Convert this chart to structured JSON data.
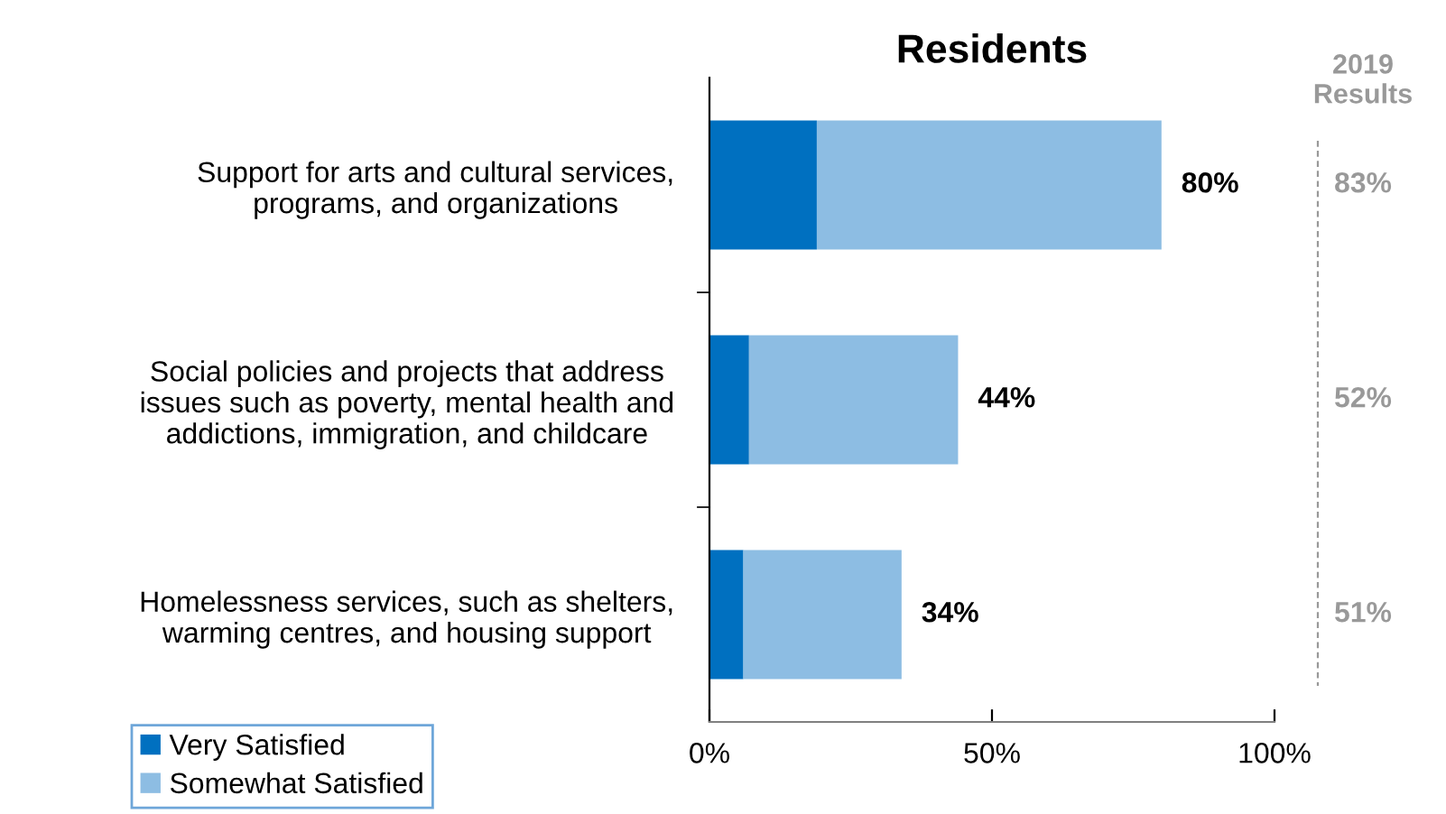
{
  "chart_data": {
    "type": "bar",
    "orientation": "horizontal",
    "stacked": true,
    "title": "Residents",
    "categories": [
      "Support for arts and cultural services,\nprograms, and organizations",
      "Social policies and projects that address\nissues such as poverty, mental health and\naddictions, immigration, and childcare",
      "Homelessness services, such as shelters,\nwarming centres, and housing support"
    ],
    "series": [
      {
        "name": "Very Satisfied",
        "color": "#0070c0",
        "values": [
          19,
          7,
          6
        ]
      },
      {
        "name": "Somewhat Satisfied",
        "color": "#8dbde3",
        "values": [
          61,
          37,
          28
        ]
      }
    ],
    "totals": [
      "80%",
      "44%",
      "34%"
    ],
    "xlim": [
      0,
      100
    ],
    "xticks": [
      {
        "value": 0,
        "label": "0%"
      },
      {
        "value": 50,
        "label": "50%"
      },
      {
        "value": 100,
        "label": "100%"
      }
    ],
    "legend": "bottom left",
    "annotations": [
      "2019\nResults",
      "83%",
      "52%",
      "51%"
    ]
  }
}
